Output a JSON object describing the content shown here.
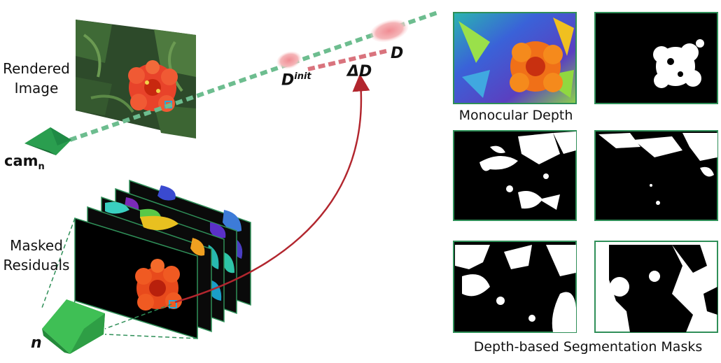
{
  "labels": {
    "rendered_image": [
      "Rendered",
      "Image"
    ],
    "masked_residuals": [
      "Masked",
      "Residuals"
    ],
    "cam": "cam",
    "cam_sub": "n",
    "n": "n",
    "d_init": "D",
    "d_init_sup": "init",
    "delta_d": "ΔD",
    "d": "D",
    "monocular_depth": "Monocular Depth",
    "segmentation_masks": "Depth-based Segmentation Masks"
  },
  "colors": {
    "camera_dark": "#1f8a45",
    "camera_light": "#3fbf55",
    "ray": "#6dbd8f",
    "delta_segment": "#d9737d",
    "arrow": "#b2262e",
    "blob": "#f2a9ad",
    "frame": "#2f8f58",
    "flower": "#f04a25"
  }
}
